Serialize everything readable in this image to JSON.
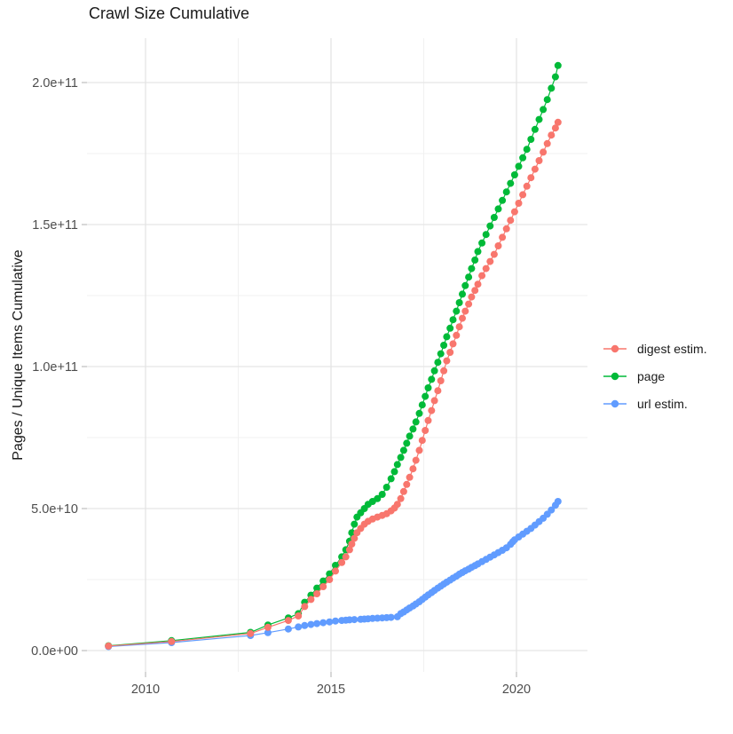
{
  "title": "Crawl Size Cumulative",
  "y_axis": {
    "title": "Pages / Unique Items Cumulative",
    "tick_labels": [
      "0.0e+00",
      "5.0e+10",
      "1.0e+11",
      "1.5e+11",
      "2.0e+11"
    ]
  },
  "x_axis": {
    "tick_labels": [
      "2010",
      "2015",
      "2020"
    ]
  },
  "legend": {
    "items": [
      {
        "label": "digest estim.",
        "color": "#F8766D"
      },
      {
        "label": "page",
        "color": "#00BA38"
      },
      {
        "label": "url estim.",
        "color": "#619CFF"
      }
    ]
  },
  "colors": {
    "digest": "#F8766D",
    "page": "#00BA38",
    "url": "#619CFF",
    "grid_major": "#e5e5e5",
    "grid_minor": "#f0f0f0",
    "tick_mark": "#c4c4c4",
    "tick_text": "#4d4d4d",
    "title_text": "#1a1a1a"
  },
  "chart_data": {
    "type": "scatter",
    "title": "Crawl Size Cumulative",
    "xlabel": "",
    "ylabel": "Pages / Unique Items Cumulative",
    "grid": true,
    "legend_position": "right",
    "xlim": [
      2008.4,
      2021.8
    ],
    "ylim": [
      0,
      215000000000.0
    ],
    "x_ticks": [
      {
        "value": 2010,
        "label": "2010"
      },
      {
        "value": 2015,
        "label": "2015"
      },
      {
        "value": 2020,
        "label": "2020"
      }
    ],
    "x_minor_ticks": [
      2012.5,
      2017.5
    ],
    "y_ticks": [
      {
        "value": 0,
        "label": "0.0e+00"
      },
      {
        "value": 50000000000.0,
        "label": "5.0e+10"
      },
      {
        "value": 100000000000.0,
        "label": "1.0e+11"
      },
      {
        "value": 150000000000.0,
        "label": "1.5e+11"
      },
      {
        "value": 200000000000.0,
        "label": "2.0e+11"
      }
    ],
    "y_minor_ticks": [
      25000000000.0,
      75000000000.0,
      125000000000.0,
      175000000000.0
    ],
    "series": [
      {
        "name": "page",
        "color": "#00BA38",
        "points": [
          [
            2009.0,
            1700000000.0
          ],
          [
            2010.7,
            3500000000.0
          ],
          [
            2012.83,
            6400000000.0
          ],
          [
            2013.3,
            9000000000.0
          ],
          [
            2013.85,
            11500000000.0
          ],
          [
            2014.12,
            13000000000.0
          ],
          [
            2014.29,
            17000000000.0
          ],
          [
            2014.46,
            19500000000.0
          ],
          [
            2014.62,
            22000000000.0
          ],
          [
            2014.79,
            24500000000.0
          ],
          [
            2014.96,
            27000000000.0
          ],
          [
            2015.12,
            30000000000.0
          ],
          [
            2015.29,
            33000000000.0
          ],
          [
            2015.4,
            35500000000.0
          ],
          [
            2015.5,
            38500000000.0
          ],
          [
            2015.56,
            41500000000.0
          ],
          [
            2015.63,
            44500000000.0
          ],
          [
            2015.7,
            47000000000.0
          ],
          [
            2015.8,
            48500000000.0
          ],
          [
            2015.9,
            50000000000.0
          ],
          [
            2016.0,
            51500000000.0
          ],
          [
            2016.12,
            52500000000.0
          ],
          [
            2016.25,
            53500000000.0
          ],
          [
            2016.38,
            55000000000.0
          ],
          [
            2016.5,
            57500000000.0
          ],
          [
            2016.62,
            60500000000.0
          ],
          [
            2016.71,
            63000000000.0
          ],
          [
            2016.79,
            65500000000.0
          ],
          [
            2016.88,
            68000000000.0
          ],
          [
            2016.96,
            70500000000.0
          ],
          [
            2017.04,
            73000000000.0
          ],
          [
            2017.12,
            75500000000.0
          ],
          [
            2017.21,
            78000000000.0
          ],
          [
            2017.29,
            80500000000.0
          ],
          [
            2017.38,
            83500000000.0
          ],
          [
            2017.46,
            86500000000.0
          ],
          [
            2017.54,
            89500000000.0
          ],
          [
            2017.62,
            92500000000.0
          ],
          [
            2017.71,
            95500000000.0
          ],
          [
            2017.79,
            98500000000.0
          ],
          [
            2017.88,
            101500000000.0
          ],
          [
            2017.96,
            104500000000.0
          ],
          [
            2018.04,
            107500000000.0
          ],
          [
            2018.12,
            110500000000.0
          ],
          [
            2018.21,
            113500000000.0
          ],
          [
            2018.29,
            116500000000.0
          ],
          [
            2018.38,
            119500000000.0
          ],
          [
            2018.46,
            122500000000.0
          ],
          [
            2018.54,
            125500000000.0
          ],
          [
            2018.62,
            128500000000.0
          ],
          [
            2018.71,
            131500000000.0
          ],
          [
            2018.79,
            134500000000.0
          ],
          [
            2018.88,
            137500000000.0
          ],
          [
            2018.96,
            140500000000.0
          ],
          [
            2019.07,
            143500000000.0
          ],
          [
            2019.18,
            146500000000.0
          ],
          [
            2019.29,
            149500000000.0
          ],
          [
            2019.4,
            152500000000.0
          ],
          [
            2019.51,
            155500000000.0
          ],
          [
            2019.62,
            158500000000.0
          ],
          [
            2019.73,
            161500000000.0
          ],
          [
            2019.84,
            164500000000.0
          ],
          [
            2019.95,
            167500000000.0
          ],
          [
            2020.06,
            170500000000.0
          ],
          [
            2020.17,
            173500000000.0
          ],
          [
            2020.28,
            176500000000.0
          ],
          [
            2020.39,
            180000000000.0
          ],
          [
            2020.5,
            183500000000.0
          ],
          [
            2020.61,
            187000000000.0
          ],
          [
            2020.72,
            190500000000.0
          ],
          [
            2020.83,
            194000000000.0
          ],
          [
            2020.94,
            198000000000.0
          ],
          [
            2021.05,
            202000000000.0
          ],
          [
            2021.12,
            206000000000.0
          ]
        ]
      },
      {
        "name": "url estim.",
        "color": "#619CFF",
        "points": [
          [
            2009.0,
            1400000000.0
          ],
          [
            2010.7,
            2800000000.0
          ],
          [
            2012.83,
            5300000000.0
          ],
          [
            2013.3,
            6300000000.0
          ],
          [
            2013.85,
            7600000000.0
          ],
          [
            2014.12,
            8300000000.0
          ],
          [
            2014.29,
            8800000000.0
          ],
          [
            2014.46,
            9200000000.0
          ],
          [
            2014.62,
            9500000000.0
          ],
          [
            2014.79,
            9800000000.0
          ],
          [
            2014.96,
            10100000000.0
          ],
          [
            2015.12,
            10400000000.0
          ],
          [
            2015.29,
            10600000000.0
          ],
          [
            2015.4,
            10700000000.0
          ],
          [
            2015.5,
            10800000000.0
          ],
          [
            2015.63,
            10900000000.0
          ],
          [
            2015.8,
            11000000000.0
          ],
          [
            2015.9,
            11100000000.0
          ],
          [
            2016.0,
            11200000000.0
          ],
          [
            2016.12,
            11300000000.0
          ],
          [
            2016.25,
            11400000000.0
          ],
          [
            2016.38,
            11500000000.0
          ],
          [
            2016.5,
            11600000000.0
          ],
          [
            2016.62,
            11700000000.0
          ],
          [
            2016.79,
            11900000000.0
          ],
          [
            2016.88,
            13000000000.0
          ],
          [
            2016.96,
            13600000000.0
          ],
          [
            2017.04,
            14300000000.0
          ],
          [
            2017.12,
            15000000000.0
          ],
          [
            2017.21,
            15700000000.0
          ],
          [
            2017.29,
            16400000000.0
          ],
          [
            2017.38,
            17200000000.0
          ],
          [
            2017.46,
            18000000000.0
          ],
          [
            2017.54,
            18800000000.0
          ],
          [
            2017.62,
            19600000000.0
          ],
          [
            2017.71,
            20400000000.0
          ],
          [
            2017.79,
            21200000000.0
          ],
          [
            2017.88,
            22000000000.0
          ],
          [
            2017.96,
            22700000000.0
          ],
          [
            2018.04,
            23400000000.0
          ],
          [
            2018.12,
            24100000000.0
          ],
          [
            2018.21,
            24800000000.0
          ],
          [
            2018.29,
            25500000000.0
          ],
          [
            2018.38,
            26200000000.0
          ],
          [
            2018.46,
            26900000000.0
          ],
          [
            2018.54,
            27500000000.0
          ],
          [
            2018.62,
            28100000000.0
          ],
          [
            2018.71,
            28700000000.0
          ],
          [
            2018.79,
            29300000000.0
          ],
          [
            2018.88,
            29900000000.0
          ],
          [
            2018.96,
            30500000000.0
          ],
          [
            2019.07,
            31300000000.0
          ],
          [
            2019.18,
            32100000000.0
          ],
          [
            2019.29,
            32900000000.0
          ],
          [
            2019.4,
            33700000000.0
          ],
          [
            2019.51,
            34500000000.0
          ],
          [
            2019.62,
            35300000000.0
          ],
          [
            2019.73,
            36200000000.0
          ],
          [
            2019.84,
            37400000000.0
          ],
          [
            2019.9,
            38300000000.0
          ],
          [
            2019.95,
            39000000000.0
          ],
          [
            2020.06,
            40000000000.0
          ],
          [
            2020.17,
            41000000000.0
          ],
          [
            2020.28,
            42000000000.0
          ],
          [
            2020.39,
            43000000000.0
          ],
          [
            2020.5,
            44200000000.0
          ],
          [
            2020.61,
            45400000000.0
          ],
          [
            2020.72,
            46600000000.0
          ],
          [
            2020.83,
            48000000000.0
          ],
          [
            2020.94,
            49500000000.0
          ],
          [
            2021.05,
            51200000000.0
          ],
          [
            2021.12,
            52500000000.0
          ]
        ]
      },
      {
        "name": "digest estim.",
        "color": "#F8766D",
        "points": [
          [
            2009.0,
            1600000000.0
          ],
          [
            2010.7,
            3200000000.0
          ],
          [
            2012.83,
            6000000000.0
          ],
          [
            2013.3,
            8200000000.0
          ],
          [
            2013.85,
            10600000000.0
          ],
          [
            2014.12,
            12200000000.0
          ],
          [
            2014.29,
            15500000000.0
          ],
          [
            2014.46,
            18000000000.0
          ],
          [
            2014.62,
            20000000000.0
          ],
          [
            2014.79,
            22500000000.0
          ],
          [
            2014.96,
            25000000000.0
          ],
          [
            2015.12,
            28000000000.0
          ],
          [
            2015.29,
            31000000000.0
          ],
          [
            2015.4,
            33000000000.0
          ],
          [
            2015.5,
            35500000000.0
          ],
          [
            2015.56,
            37500000000.0
          ],
          [
            2015.63,
            39500000000.0
          ],
          [
            2015.7,
            41500000000.0
          ],
          [
            2015.8,
            43000000000.0
          ],
          [
            2015.9,
            44500000000.0
          ],
          [
            2016.0,
            45500000000.0
          ],
          [
            2016.12,
            46300000000.0
          ],
          [
            2016.25,
            47000000000.0
          ],
          [
            2016.38,
            47600000000.0
          ],
          [
            2016.5,
            48200000000.0
          ],
          [
            2016.62,
            49200000000.0
          ],
          [
            2016.71,
            50200000000.0
          ],
          [
            2016.79,
            51500000000.0
          ],
          [
            2016.88,
            53500000000.0
          ],
          [
            2016.96,
            56000000000.0
          ],
          [
            2017.04,
            58500000000.0
          ],
          [
            2017.12,
            61000000000.0
          ],
          [
            2017.21,
            64000000000.0
          ],
          [
            2017.29,
            67000000000.0
          ],
          [
            2017.38,
            70500000000.0
          ],
          [
            2017.46,
            74000000000.0
          ],
          [
            2017.54,
            77500000000.0
          ],
          [
            2017.62,
            81000000000.0
          ],
          [
            2017.71,
            84500000000.0
          ],
          [
            2017.79,
            88000000000.0
          ],
          [
            2017.88,
            91500000000.0
          ],
          [
            2017.96,
            95000000000.0
          ],
          [
            2018.04,
            98500000000.0
          ],
          [
            2018.12,
            102000000000.0
          ],
          [
            2018.21,
            105000000000.0
          ],
          [
            2018.29,
            108000000000.0
          ],
          [
            2018.38,
            111000000000.0
          ],
          [
            2018.46,
            114000000000.0
          ],
          [
            2018.54,
            117000000000.0
          ],
          [
            2018.62,
            119500000000.0
          ],
          [
            2018.71,
            122000000000.0
          ],
          [
            2018.79,
            124500000000.0
          ],
          [
            2018.88,
            126800000000.0
          ],
          [
            2018.96,
            129000000000.0
          ],
          [
            2019.07,
            132000000000.0
          ],
          [
            2019.18,
            134500000000.0
          ],
          [
            2019.29,
            137000000000.0
          ],
          [
            2019.4,
            139500000000.0
          ],
          [
            2019.51,
            142500000000.0
          ],
          [
            2019.62,
            145500000000.0
          ],
          [
            2019.73,
            148500000000.0
          ],
          [
            2019.84,
            151500000000.0
          ],
          [
            2019.95,
            154500000000.0
          ],
          [
            2020.06,
            157500000000.0
          ],
          [
            2020.17,
            160500000000.0
          ],
          [
            2020.28,
            163500000000.0
          ],
          [
            2020.39,
            166500000000.0
          ],
          [
            2020.5,
            169500000000.0
          ],
          [
            2020.61,
            172500000000.0
          ],
          [
            2020.72,
            175500000000.0
          ],
          [
            2020.83,
            178500000000.0
          ],
          [
            2020.94,
            181500000000.0
          ],
          [
            2021.05,
            184000000000.0
          ],
          [
            2021.12,
            186000000000.0
          ]
        ]
      }
    ]
  }
}
